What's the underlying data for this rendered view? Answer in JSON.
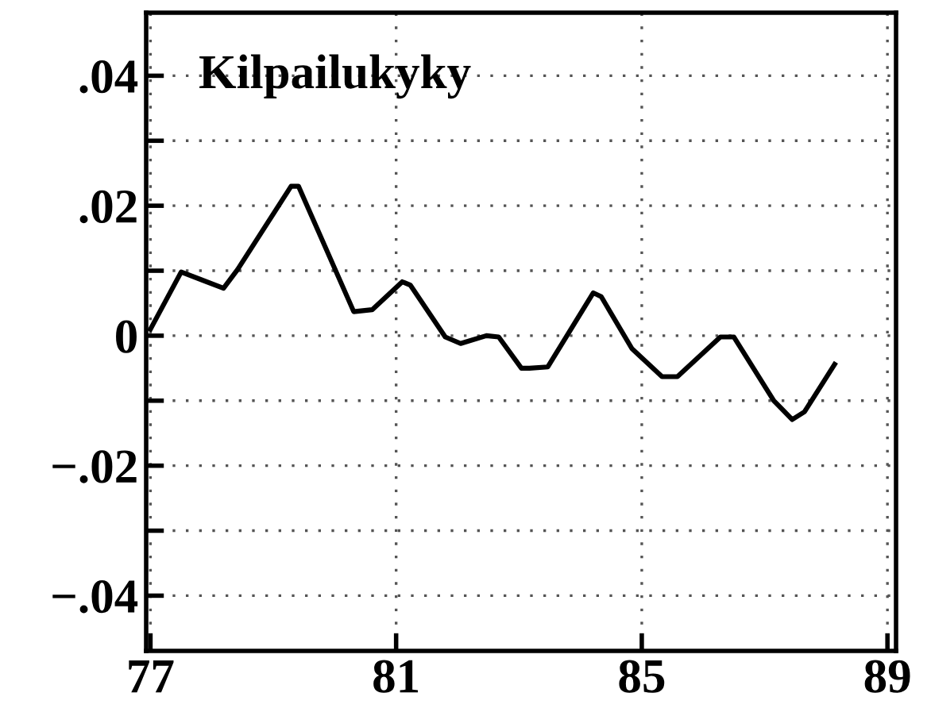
{
  "chart_data": {
    "type": "line",
    "title": "Kilpailukyky",
    "x": [
      77.0,
      77.5,
      78.19,
      78.42,
      79.29,
      79.41,
      80.31,
      80.61,
      81.1,
      81.23,
      81.8,
      82.05,
      82.47,
      82.67,
      83.04,
      83.17,
      83.47,
      84.21,
      84.34,
      84.84,
      85.33,
      85.58,
      86.28,
      86.5,
      87.15,
      87.45,
      87.65,
      88.14
    ],
    "series": [
      {
        "color": "#000000",
        "values": [
          0.001,
          0.0098,
          0.0073,
          0.0102,
          0.023,
          0.023,
          0.0037,
          0.004,
          0.0083,
          0.0078,
          -0.0002,
          -0.0012,
          0.0,
          -0.0002,
          -0.005,
          -0.005,
          -0.0048,
          0.0066,
          0.006,
          -0.002,
          -0.0063,
          -0.0063,
          -0.0002,
          -0.0002,
          -0.01,
          -0.0129,
          -0.0117,
          -0.0044
        ]
      }
    ],
    "xlim": [
      76.93,
      89.14
    ],
    "xticks": [
      77,
      81,
      85,
      89
    ],
    "ylim": [
      -0.0485,
      0.0497
    ],
    "yticks": [
      {
        "value": -0.04,
        "label": "−.04"
      },
      {
        "value": -0.03,
        "label": null
      },
      {
        "value": -0.02,
        "label": "−.02"
      },
      {
        "value": -0.01,
        "label": null
      },
      {
        "value": 0,
        "label": "0"
      },
      {
        "value": 0.01,
        "label": null
      },
      {
        "value": 0.02,
        "label": ".02"
      },
      {
        "value": 0.03,
        "label": null
      },
      {
        "value": 0.04,
        "label": ".04"
      }
    ],
    "grid": true,
    "line_style": "solid",
    "marker": "none"
  }
}
